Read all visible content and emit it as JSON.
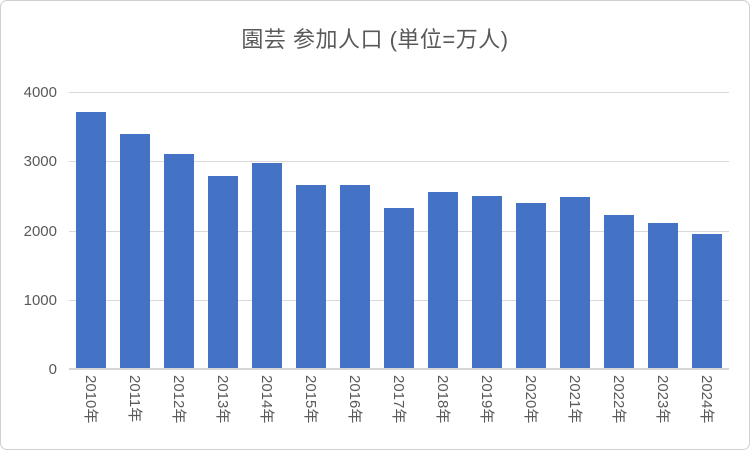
{
  "chart_data": {
    "type": "bar",
    "title": "園芸 参加人口 (単位=万人)",
    "categories": [
      "2010年",
      "2011年",
      "2012年",
      "2013年",
      "2014年",
      "2015年",
      "2016年",
      "2017年",
      "2018年",
      "2019年",
      "2020年",
      "2021年",
      "2022年",
      "2023年",
      "2024年"
    ],
    "values": [
      3710,
      3390,
      3100,
      2780,
      2980,
      2650,
      2660,
      2320,
      2560,
      2500,
      2400,
      2480,
      2220,
      2110,
      1950
    ],
    "xlabel": "",
    "ylabel": "",
    "ylim": [
      0,
      4000
    ],
    "y_ticks": [
      0,
      1000,
      2000,
      3000,
      4000
    ],
    "grid": true,
    "legend": "none",
    "x_label_rotation_deg": 90,
    "colors": {
      "bar": "#4472C4",
      "gridline": "#d9d9d9",
      "axis_line": "#d6d6d6",
      "text": "#595959",
      "chart_border": "#d2d0ce",
      "background": "#ffffff"
    }
  }
}
